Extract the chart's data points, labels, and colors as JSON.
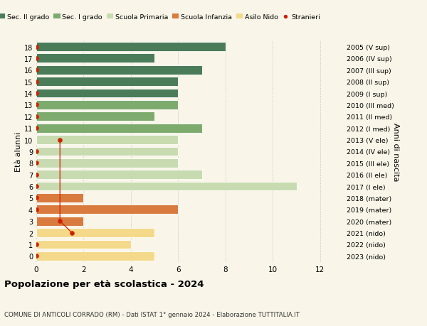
{
  "ages": [
    18,
    17,
    16,
    15,
    14,
    13,
    12,
    11,
    10,
    9,
    8,
    7,
    6,
    5,
    4,
    3,
    2,
    1,
    0
  ],
  "right_labels": [
    "2005 (V sup)",
    "2006 (IV sup)",
    "2007 (III sup)",
    "2008 (II sup)",
    "2009 (I sup)",
    "2010 (III med)",
    "2011 (II med)",
    "2012 (I med)",
    "2013 (V ele)",
    "2014 (IV ele)",
    "2015 (III ele)",
    "2016 (II ele)",
    "2017 (I ele)",
    "2018 (mater)",
    "2019 (mater)",
    "2020 (mater)",
    "2021 (nido)",
    "2022 (nido)",
    "2023 (nido)"
  ],
  "bar_values": [
    8,
    5,
    7,
    6,
    6,
    6,
    5,
    7,
    6,
    6,
    6,
    7,
    11,
    2,
    6,
    2,
    5,
    4,
    5
  ],
  "bar_colors": [
    "#4a7c59",
    "#4a7c59",
    "#4a7c59",
    "#4a7c59",
    "#4a7c59",
    "#7dab6e",
    "#7dab6e",
    "#7dab6e",
    "#c8dbb0",
    "#c8dbb0",
    "#c8dbb0",
    "#c8dbb0",
    "#c8dbb0",
    "#d97b3e",
    "#d97b3e",
    "#d97b3e",
    "#f5d98b",
    "#f5d98b",
    "#f5d98b"
  ],
  "stranieri_x": [
    0,
    0,
    0,
    0,
    0,
    0,
    0,
    0,
    1,
    0,
    0,
    0,
    0,
    0,
    0,
    1,
    1.5,
    0,
    0
  ],
  "stranieri_line_ages": [
    10,
    3,
    2
  ],
  "stranieri_line_x": [
    1,
    1,
    1.5
  ],
  "legend_labels": [
    "Sec. II grado",
    "Sec. I grado",
    "Scuola Primaria",
    "Scuola Infanzia",
    "Asilo Nido",
    "Stranieri"
  ],
  "legend_colors": [
    "#4a7c59",
    "#7dab6e",
    "#c8dbb0",
    "#d97b3e",
    "#f5d98b",
    "#cc2200"
  ],
  "title": "Popolazione per età scolastica - 2024",
  "subtitle": "COMUNE DI ANTICOLI CORRADO (RM) - Dati ISTAT 1° gennaio 2024 - Elaborazione TUTTITALIA.IT",
  "ylabel": "Età alunni",
  "ylabel_right": "Anni di nascita",
  "background_color": "#f9f5e8",
  "plot_bg": "#f9f5e8",
  "grid_color": "#cccccc",
  "xlim": [
    0,
    13
  ],
  "ylim_low": -0.55,
  "ylim_high": 18.55
}
